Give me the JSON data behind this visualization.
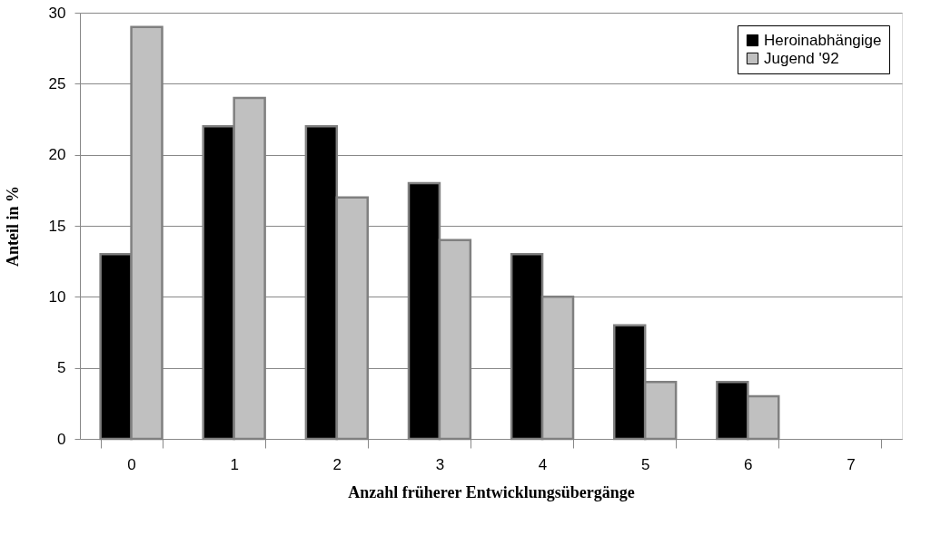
{
  "chart_data": {
    "type": "bar",
    "xlabel": "Anzahl früherer Entwicklungsübergänge",
    "ylabel": "Anteil  in  %",
    "categories": [
      "0",
      "1",
      "2",
      "3",
      "4",
      "5",
      "6",
      "7"
    ],
    "series": [
      {
        "name": "Heroinabhängige",
        "color": "#000000",
        "values": [
          13,
          22,
          22,
          18,
          13,
          8,
          4,
          null
        ]
      },
      {
        "name": "Jugend  '92",
        "color": "#c0c0c0",
        "values": [
          29,
          24,
          17,
          14,
          10,
          4,
          3,
          null
        ]
      }
    ],
    "ylim": [
      0,
      30
    ],
    "yticks": [
      0,
      5,
      10,
      15,
      20,
      25,
      30
    ],
    "grid": "y",
    "legend": "top right"
  }
}
